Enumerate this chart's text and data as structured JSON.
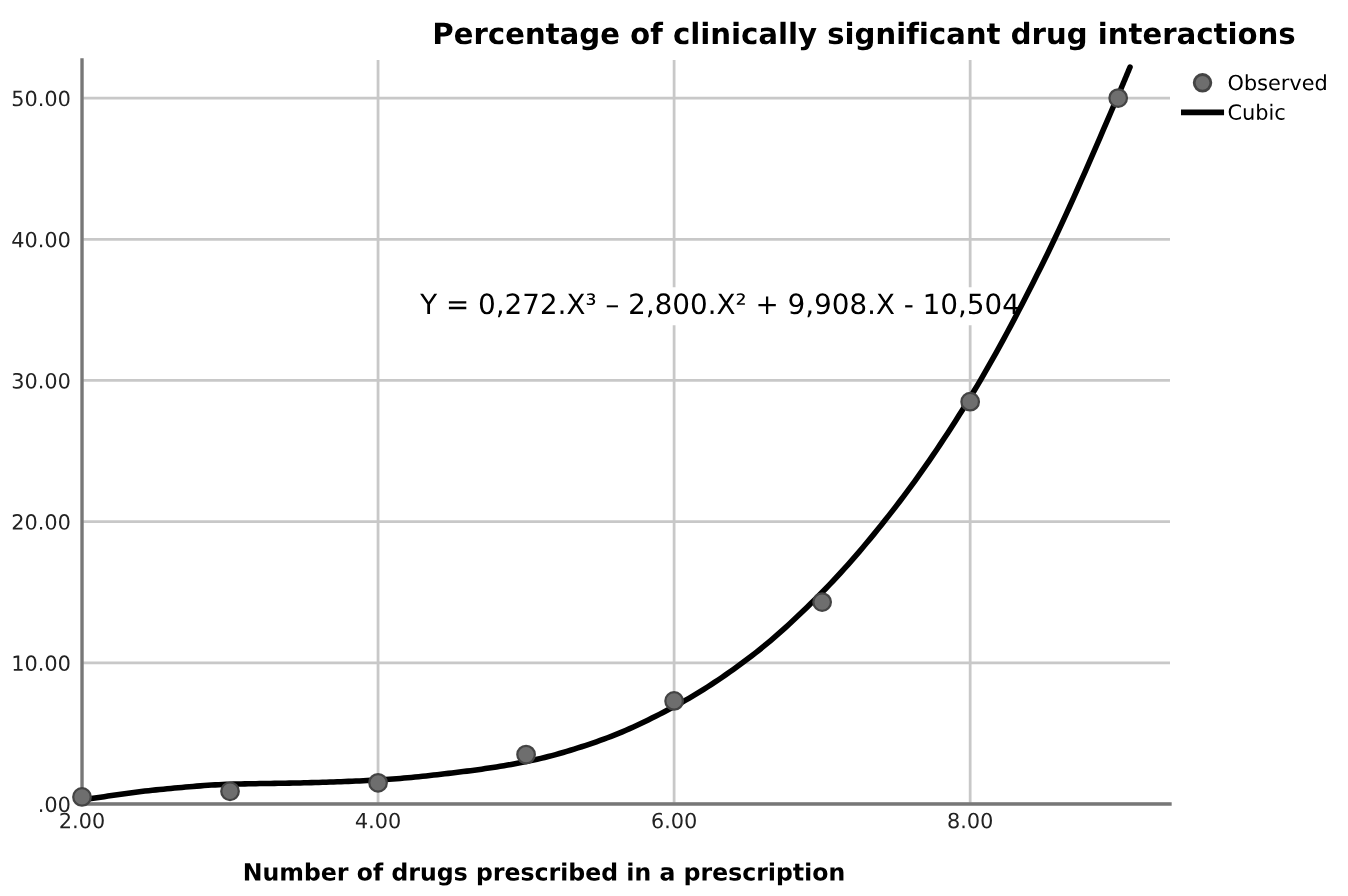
{
  "chart_data": {
    "type": "scatter",
    "title": "Percentage of clinically significant drug interactions",
    "xlabel": "Number of drugs prescribed in a prescription",
    "xlim": [
      2,
      9.35
    ],
    "ylim": [
      0,
      52.7
    ],
    "xticks": [
      {
        "value": 2,
        "label": "2.00"
      },
      {
        "value": 4,
        "label": "4.00"
      },
      {
        "value": 6,
        "label": "6.00"
      },
      {
        "value": 8,
        "label": "8.00"
      }
    ],
    "yticks": [
      {
        "value": 0,
        "label": ".00"
      },
      {
        "value": 10,
        "label": "10.00"
      },
      {
        "value": 20,
        "label": "20.00"
      },
      {
        "value": 30,
        "label": "30.00"
      },
      {
        "value": 40,
        "label": "40.00"
      },
      {
        "value": 50,
        "label": "50.00"
      }
    ],
    "grid": true,
    "legend": "top right",
    "annotations": [
      "Y = 0,272.X³ – 2,800.X² + 9,908.X - 10,504"
    ],
    "series": [
      {
        "name": "Observed",
        "marker": "circle",
        "color": "#6e6e6e",
        "x": [
          2,
          3,
          4,
          5,
          6,
          7,
          8,
          9
        ],
        "values": [
          0.5,
          0.9,
          1.5,
          3.5,
          7.3,
          14.3,
          28.5,
          50.0
        ]
      },
      {
        "name": "Cubic",
        "type": "line",
        "color": "#000000",
        "x": [
          2,
          2.5,
          3,
          3.5,
          4,
          4.5,
          5,
          5.5,
          6,
          6.5,
          7,
          7.5,
          8,
          8.5,
          9,
          9.08
        ],
        "values": [
          0.3,
          1.0,
          1.4,
          1.5,
          1.7,
          2.2,
          3.0,
          4.5,
          6.9,
          10.3,
          15.0,
          21.1,
          28.8,
          38.5,
          50.2,
          52.2
        ]
      }
    ]
  }
}
